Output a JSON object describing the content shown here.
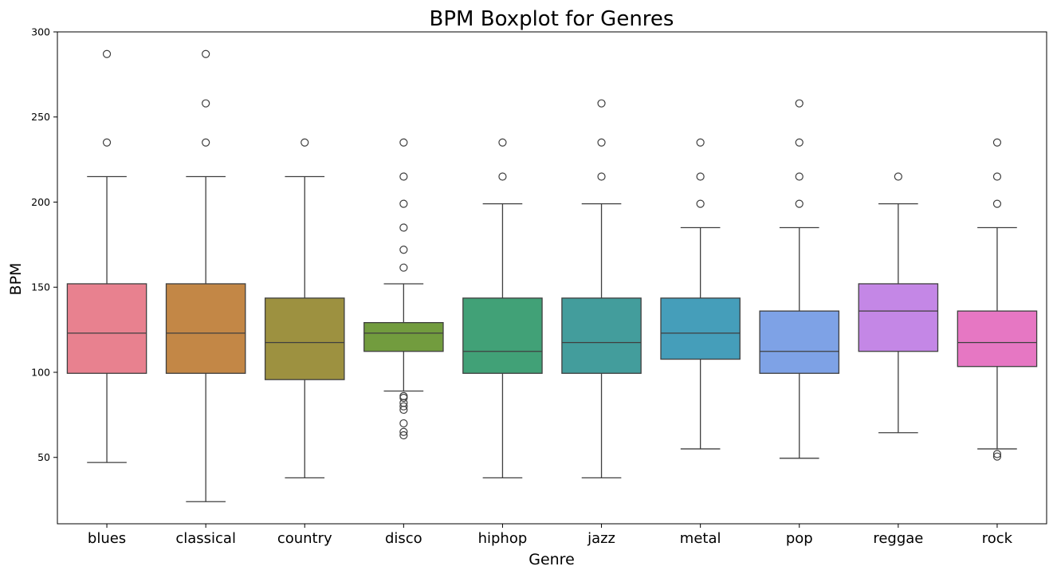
{
  "chart_data": {
    "type": "boxplot",
    "title": "BPM Boxplot for Genres",
    "xlabel": "Genre",
    "ylabel": "BPM",
    "ylim": [
      11,
      300
    ],
    "yticks": [
      50,
      100,
      150,
      200,
      250,
      300
    ],
    "grid": false,
    "legend": "none",
    "categories": [
      "blues",
      "classical",
      "country",
      "disco",
      "hiphop",
      "jazz",
      "metal",
      "pop",
      "reggae",
      "rock"
    ],
    "series": [
      {
        "category": "blues",
        "color": "#e8818f",
        "whisker_low": 47,
        "q1": 99.4,
        "median": 123,
        "q3": 152,
        "whisker_high": 215,
        "outliers": [
          235,
          287
        ]
      },
      {
        "category": "classical",
        "color": "#c38746",
        "whisker_low": 24,
        "q1": 99.4,
        "median": 123,
        "q3": 152,
        "whisker_high": 215,
        "outliers": [
          235,
          258,
          287
        ]
      },
      {
        "category": "country",
        "color": "#9d9140",
        "whisker_low": 38,
        "q1": 95.7,
        "median": 117.5,
        "q3": 143.6,
        "whisker_high": 215,
        "outliers": [
          235
        ]
      },
      {
        "category": "disco",
        "color": "#729c3e",
        "whisker_low": 89,
        "q1": 112.3,
        "median": 123,
        "q3": 129.2,
        "whisker_high": 152,
        "outliers": [
          63,
          65,
          70,
          78,
          80,
          82,
          85,
          86,
          161.5,
          172,
          185,
          199,
          215,
          235
        ]
      },
      {
        "category": "hiphop",
        "color": "#41a177",
        "whisker_low": 38,
        "q1": 99.4,
        "median": 112.3,
        "q3": 143.6,
        "whisker_high": 199,
        "outliers": [
          215,
          235
        ]
      },
      {
        "category": "jazz",
        "color": "#439d9c",
        "whisker_low": 38,
        "q1": 99.4,
        "median": 117.5,
        "q3": 143.6,
        "whisker_high": 199,
        "outliers": [
          215,
          235,
          258
        ]
      },
      {
        "category": "metal",
        "color": "#459eba",
        "whisker_low": 55,
        "q1": 107.7,
        "median": 123,
        "q3": 143.6,
        "whisker_high": 185,
        "outliers": [
          199,
          215,
          235
        ]
      },
      {
        "category": "pop",
        "color": "#7ea2e6",
        "whisker_low": 49.5,
        "q1": 99.4,
        "median": 112.3,
        "q3": 136,
        "whisker_high": 185,
        "outliers": [
          199,
          215,
          235,
          258
        ]
      },
      {
        "category": "reggae",
        "color": "#c487e6",
        "whisker_low": 64.5,
        "q1": 112.3,
        "median": 136,
        "q3": 152,
        "whisker_high": 199,
        "outliers": [
          215
        ]
      },
      {
        "category": "rock",
        "color": "#e677c3",
        "whisker_low": 55,
        "q1": 103.4,
        "median": 117.5,
        "q3": 136,
        "whisker_high": 185,
        "outliers": [
          50.5,
          52,
          199,
          215,
          235
        ]
      }
    ]
  }
}
